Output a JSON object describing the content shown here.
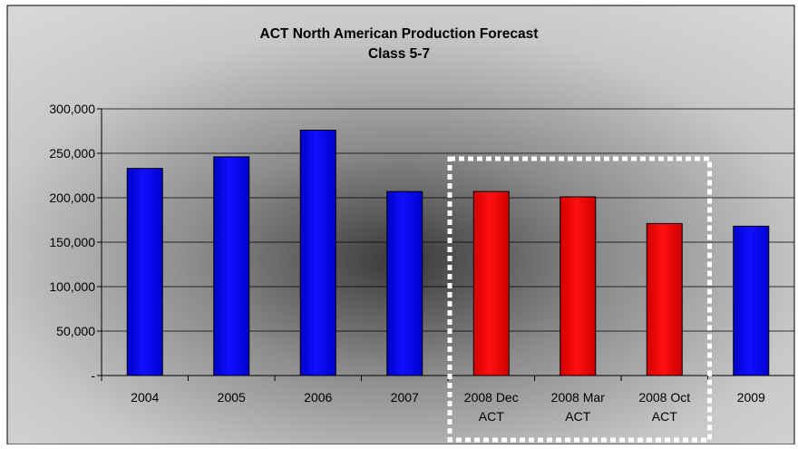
{
  "chart_data": {
    "type": "bar",
    "title": "ACT North American Production Forecast",
    "subtitle": "Class 5-7",
    "xlabel": "",
    "ylabel": "",
    "categories": [
      [
        "2004"
      ],
      [
        "2005"
      ],
      [
        "2006"
      ],
      [
        "2007"
      ],
      [
        "2008 Dec",
        "ACT"
      ],
      [
        "2008 Mar",
        "ACT"
      ],
      [
        "2008 Oct",
        "ACT"
      ],
      [
        "2009"
      ]
    ],
    "values": [
      233000,
      246000,
      276000,
      207000,
      207000,
      201000,
      171000,
      168000
    ],
    "bar_colors": [
      "#0000ff",
      "#0000ff",
      "#0000ff",
      "#0000ff",
      "#ff0000",
      "#ff0000",
      "#ff0000",
      "#0000ff"
    ],
    "ylim": [
      0,
      300000
    ],
    "yticks": [
      0,
      50000,
      100000,
      150000,
      200000,
      250000,
      300000
    ],
    "ytick_labels": [
      "-",
      "50,000",
      "100,000",
      "150,000",
      "200,000",
      "250,000",
      "300,000"
    ],
    "grid": true,
    "highlight_box_categories": [
      4,
      6
    ],
    "highlight_box_style": "white dotted",
    "colors": {
      "blue_bar": "#0000ff",
      "red_bar": "#ff0000",
      "plot_background_center": "#4a4a4a",
      "plot_background_edge": "#d6d6d6"
    }
  }
}
